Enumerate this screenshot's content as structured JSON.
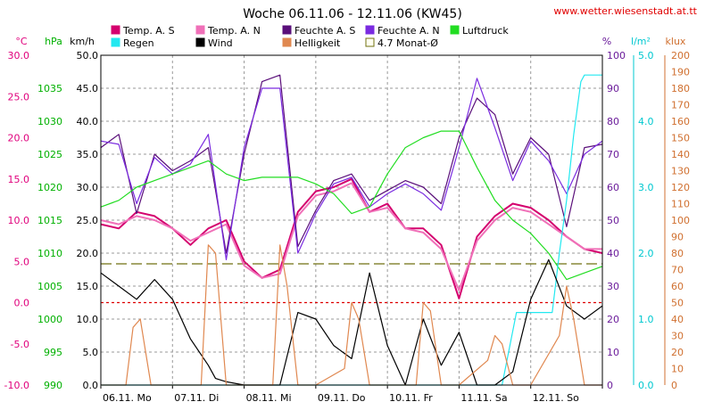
{
  "title": "Woche 06.11.06 - 12.11.06 (KW45)",
  "source": "www.wetter.wiesenstadt.at.tt",
  "chart_data": {
    "type": "line",
    "title": "Woche 06.11.06 - 12.11.06 (KW45)",
    "x_labels": [
      "06.11. Mo",
      "07.11. Di",
      "08.11. Mi",
      "09.11. Do",
      "10.11. Fr",
      "11.11. Sa",
      "12.11. So"
    ],
    "x_range_days": [
      0,
      7
    ],
    "grid": true,
    "legend_position": "top",
    "axes": [
      {
        "id": "temp",
        "unit": "°C",
        "min": -10,
        "max": 30,
        "ticks": [
          "30.0",
          "25.0",
          "20.0",
          "15.0",
          "10.0",
          "5.0",
          "0.0",
          "-5.0",
          "-10.0"
        ],
        "color": "#e0007c"
      },
      {
        "id": "pressure",
        "unit": "hPa",
        "min": 990,
        "max": 1040,
        "ticks": [
          "1035",
          "1030",
          "1025",
          "1020",
          "1015",
          "1010",
          "1005",
          "1000",
          "995",
          "990"
        ],
        "color": "#00b000"
      },
      {
        "id": "wind",
        "unit": "km/h",
        "min": 0,
        "max": 50,
        "ticks": [
          "50.0",
          "45.0",
          "40.0",
          "35.0",
          "30.0",
          "25.0",
          "20.0",
          "15.0",
          "10.0",
          "5.0",
          "0.0"
        ],
        "color": "#000000"
      },
      {
        "id": "humidity",
        "unit": "%",
        "min": 0,
        "max": 100,
        "ticks": [
          "100",
          "90",
          "80",
          "70",
          "60",
          "50",
          "40",
          "30",
          "20",
          "10",
          "0"
        ],
        "color": "#6a1b9a"
      },
      {
        "id": "rain",
        "unit": "l/m²",
        "min": 0,
        "max": 5,
        "ticks": [
          "5.0",
          "4.0",
          "3.0",
          "2.0",
          "1.0",
          "0.0"
        ],
        "color": "#00c8d0"
      },
      {
        "id": "light",
        "unit": "klux",
        "min": 0,
        "max": 200,
        "ticks": [
          "200",
          "190",
          "180",
          "170",
          "160",
          "150",
          "140",
          "130",
          "120",
          "110",
          "100",
          "90",
          "80",
          "70",
          "60",
          "50",
          "40",
          "30",
          "20",
          "10",
          "0"
        ],
        "color": "#d07030"
      }
    ],
    "legend": [
      {
        "label": "Temp. A. S",
        "color": "#d4006e"
      },
      {
        "label": "Temp. A. N",
        "color": "#f070b8"
      },
      {
        "label": "Feuchte A. S",
        "color": "#5a0f7a"
      },
      {
        "label": "Feuchte A. N",
        "color": "#7a2be0"
      },
      {
        "label": "Luftdruck",
        "color": "#22dd22"
      },
      {
        "label": "Regen",
        "color": "#22e8f0"
      },
      {
        "label": "Wind",
        "color": "#000000"
      },
      {
        "label": "Helligkeit",
        "color": "#e08850"
      },
      {
        "label": "4.7 Monat-Ø",
        "color": "#707010"
      }
    ],
    "reference_lines": [
      {
        "name": "4.7 Monat-Ø",
        "axis": "temp",
        "value": 4.7,
        "color": "#707010"
      },
      {
        "name": "0 °C",
        "axis": "temp",
        "value": 0,
        "color": "#dd0000"
      }
    ],
    "series": [
      {
        "name": "Temp. A. S",
        "axis": "temp",
        "color": "#d4006e",
        "x": [
          0,
          0.25,
          0.5,
          0.75,
          1,
          1.25,
          1.5,
          1.75,
          2,
          2.25,
          2.5,
          2.75,
          3,
          3.25,
          3.5,
          3.75,
          4,
          4.25,
          4.5,
          4.75,
          5,
          5.25,
          5.5,
          5.75,
          6,
          6.25,
          6.5,
          6.75,
          7
        ],
        "y": [
          9.5,
          9,
          11,
          10.5,
          9,
          7,
          9,
          10,
          5,
          3,
          4,
          11,
          13.5,
          14,
          15,
          11,
          12,
          9,
          9,
          7,
          0.5,
          8,
          10.5,
          12,
          11.5,
          10,
          8,
          6.5,
          6
        ]
      },
      {
        "name": "Temp. A. N",
        "axis": "temp",
        "color": "#f070b8",
        "x": [
          0,
          0.25,
          0.5,
          0.75,
          1,
          1.25,
          1.5,
          1.75,
          2,
          2.25,
          2.5,
          2.75,
          3,
          3.25,
          3.5,
          3.75,
          4,
          4.25,
          4.5,
          4.75,
          5,
          5.25,
          5.5,
          5.75,
          6,
          6.25,
          6.5,
          6.75,
          7
        ],
        "y": [
          10,
          9.5,
          10.5,
          10,
          9,
          7.5,
          8.5,
          9.5,
          4.5,
          3,
          3.5,
          10.5,
          13,
          13.5,
          14.5,
          11,
          11.5,
          9,
          8.5,
          6.5,
          1.5,
          7.5,
          10,
          11.5,
          11,
          9.5,
          8,
          6.5,
          6.5
        ]
      },
      {
        "name": "Feuchte A. S",
        "axis": "humidity",
        "color": "#5a0f7a",
        "x": [
          0,
          0.25,
          0.5,
          0.75,
          1,
          1.25,
          1.5,
          1.75,
          2,
          2.25,
          2.5,
          2.75,
          3,
          3.25,
          3.5,
          3.75,
          4,
          4.25,
          4.5,
          4.75,
          5,
          5.25,
          5.5,
          5.75,
          6,
          6.25,
          6.5,
          6.75,
          7
        ],
        "y": [
          72,
          76,
          52,
          70,
          65,
          68,
          72,
          40,
          70,
          92,
          94,
          42,
          53,
          62,
          64,
          56,
          59,
          62,
          60,
          55,
          75,
          87,
          82,
          64,
          75,
          70,
          48,
          72,
          73
        ]
      },
      {
        "name": "Feuchte A. N",
        "axis": "humidity",
        "color": "#7a2be0",
        "x": [
          0,
          0.25,
          0.5,
          0.75,
          1,
          1.25,
          1.5,
          1.75,
          2,
          2.25,
          2.5,
          2.75,
          3,
          3.25,
          3.5,
          3.75,
          4,
          4.25,
          4.5,
          4.75,
          5,
          5.25,
          5.5,
          5.75,
          6,
          6.25,
          6.5,
          6.75,
          7
        ],
        "y": [
          74,
          73,
          55,
          69,
          64,
          67,
          76,
          38,
          72,
          90,
          90,
          40,
          52,
          61,
          63,
          54,
          58,
          61,
          58,
          53,
          72,
          93,
          78,
          62,
          74,
          68,
          58,
          70,
          74
        ]
      },
      {
        "name": "Luftdruck",
        "axis": "pressure",
        "color": "#22dd22",
        "x": [
          0,
          0.25,
          0.5,
          0.75,
          1,
          1.25,
          1.5,
          1.75,
          2,
          2.25,
          2.5,
          2.75,
          3,
          3.25,
          3.5,
          3.75,
          4,
          4.25,
          4.5,
          4.75,
          5,
          5.25,
          5.5,
          5.75,
          6,
          6.25,
          6.5,
          6.75,
          7
        ],
        "y": [
          1017,
          1018,
          1020,
          1021,
          1022,
          1023,
          1024,
          1022,
          1021,
          1021.5,
          1021.5,
          1021.5,
          1020.5,
          1019,
          1016,
          1017,
          1022,
          1026,
          1027.5,
          1028.5,
          1028.5,
          1023,
          1018,
          1015,
          1013,
          1010,
          1006,
          1007,
          1008
        ]
      },
      {
        "name": "Regen",
        "axis": "rain",
        "color": "#22e8f0",
        "x": [
          0,
          5.6,
          5.8,
          5.85,
          6.3,
          6.4,
          6.5,
          6.6,
          6.7,
          6.75,
          7
        ],
        "y": [
          0,
          0,
          1.1,
          1.1,
          1.1,
          2.0,
          2.8,
          3.8,
          4.6,
          4.7,
          4.7
        ]
      },
      {
        "name": "Wind",
        "axis": "wind",
        "color": "#000000",
        "x": [
          0,
          0.25,
          0.5,
          0.75,
          1,
          1.25,
          1.5,
          1.6,
          1.75,
          2,
          2.25,
          2.5,
          2.75,
          3,
          3.25,
          3.5,
          3.75,
          4,
          4.25,
          4.5,
          4.75,
          5,
          5.25,
          5.5,
          5.75,
          6,
          6.25,
          6.5,
          6.75,
          7
        ],
        "y": [
          17,
          15,
          13,
          16,
          13,
          7,
          3,
          1,
          0.5,
          0,
          0,
          0,
          11,
          10,
          6,
          4,
          17,
          6,
          0,
          10,
          3,
          8,
          0,
          0,
          2,
          13,
          19,
          12,
          10,
          12
        ]
      },
      {
        "name": "Helligkeit",
        "axis": "light",
        "color": "#e08850",
        "x": [
          0,
          0.35,
          0.45,
          0.55,
          0.7,
          1,
          1.4,
          1.5,
          1.6,
          1.75,
          2,
          2.4,
          2.5,
          2.6,
          2.75,
          3,
          3.4,
          3.5,
          3.6,
          3.75,
          4,
          4.4,
          4.5,
          4.6,
          4.75,
          5,
          5.4,
          5.5,
          5.6,
          5.75,
          6,
          6.4,
          6.5,
          6.6,
          6.75,
          7
        ],
        "y": [
          0,
          0,
          35,
          40,
          0,
          0,
          0,
          85,
          80,
          0,
          0,
          0,
          85,
          60,
          0,
          0,
          10,
          50,
          40,
          0,
          0,
          0,
          50,
          45,
          0,
          0,
          15,
          30,
          25,
          0,
          0,
          30,
          60,
          40,
          0,
          0
        ]
      }
    ]
  }
}
